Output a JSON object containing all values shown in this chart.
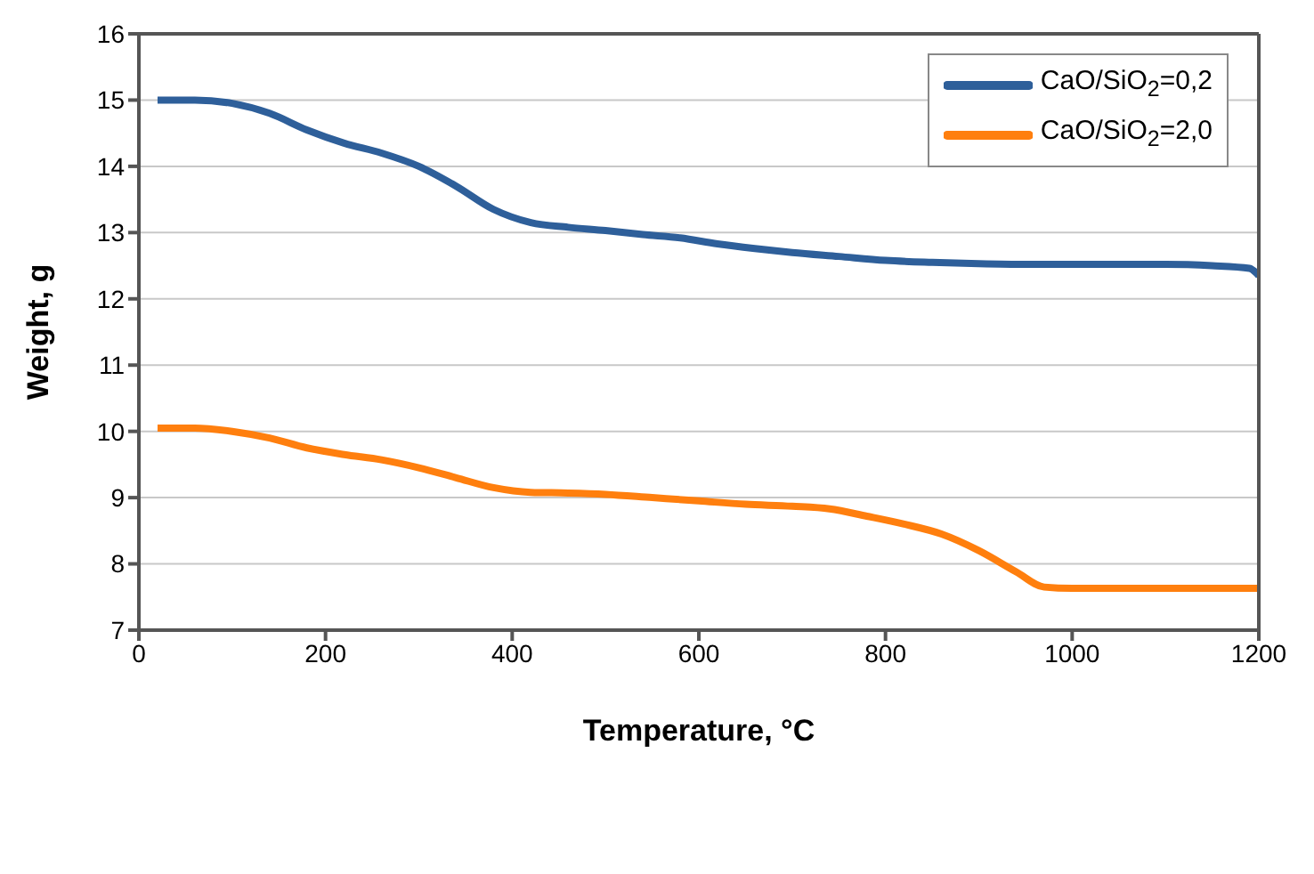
{
  "chart_data": {
    "type": "line",
    "xlabel": "Temperature, °C",
    "ylabel": "Weight, g",
    "xlim": [
      0,
      1200
    ],
    "xticks": [
      0,
      200,
      400,
      600,
      800,
      1000,
      1200
    ],
    "ylim": [
      7,
      16
    ],
    "yticks": [
      7,
      8,
      9,
      10,
      11,
      12,
      13,
      14,
      15,
      16
    ],
    "grid": "y",
    "legend": "top right",
    "marker": "none",
    "line_style": "solid",
    "series": [
      {
        "name": "CaO/SiO$_{2}$=0,2",
        "color": "#2e5f9a",
        "x": [
          20,
          60,
          100,
          140,
          180,
          220,
          260,
          300,
          340,
          380,
          420,
          460,
          500,
          540,
          580,
          620,
          660,
          700,
          750,
          800,
          850,
          900,
          950,
          1000,
          1050,
          1100,
          1150,
          1190,
          1200
        ],
        "values": [
          15.0,
          15.0,
          14.95,
          14.8,
          14.55,
          14.35,
          14.2,
          14.0,
          13.7,
          13.35,
          13.15,
          13.08,
          13.03,
          12.97,
          12.92,
          12.83,
          12.76,
          12.7,
          12.64,
          12.58,
          12.55,
          12.53,
          12.52,
          12.52,
          12.52,
          12.52,
          12.5,
          12.46,
          12.35
        ]
      },
      {
        "name": "CaO/SiO$_{2}$=2,0",
        "color": "#ff7f0e",
        "x": [
          20,
          60,
          100,
          140,
          180,
          220,
          260,
          300,
          340,
          380,
          420,
          460,
          500,
          550,
          600,
          650,
          700,
          740,
          780,
          820,
          860,
          900,
          940,
          970,
          1000,
          1100,
          1200
        ],
        "values": [
          10.05,
          10.05,
          10.0,
          9.9,
          9.75,
          9.65,
          9.57,
          9.45,
          9.3,
          9.15,
          9.08,
          9.07,
          9.05,
          9.0,
          8.95,
          8.9,
          8.87,
          8.83,
          8.72,
          8.6,
          8.45,
          8.2,
          7.88,
          7.65,
          7.63,
          7.63,
          7.63
        ]
      }
    ]
  }
}
